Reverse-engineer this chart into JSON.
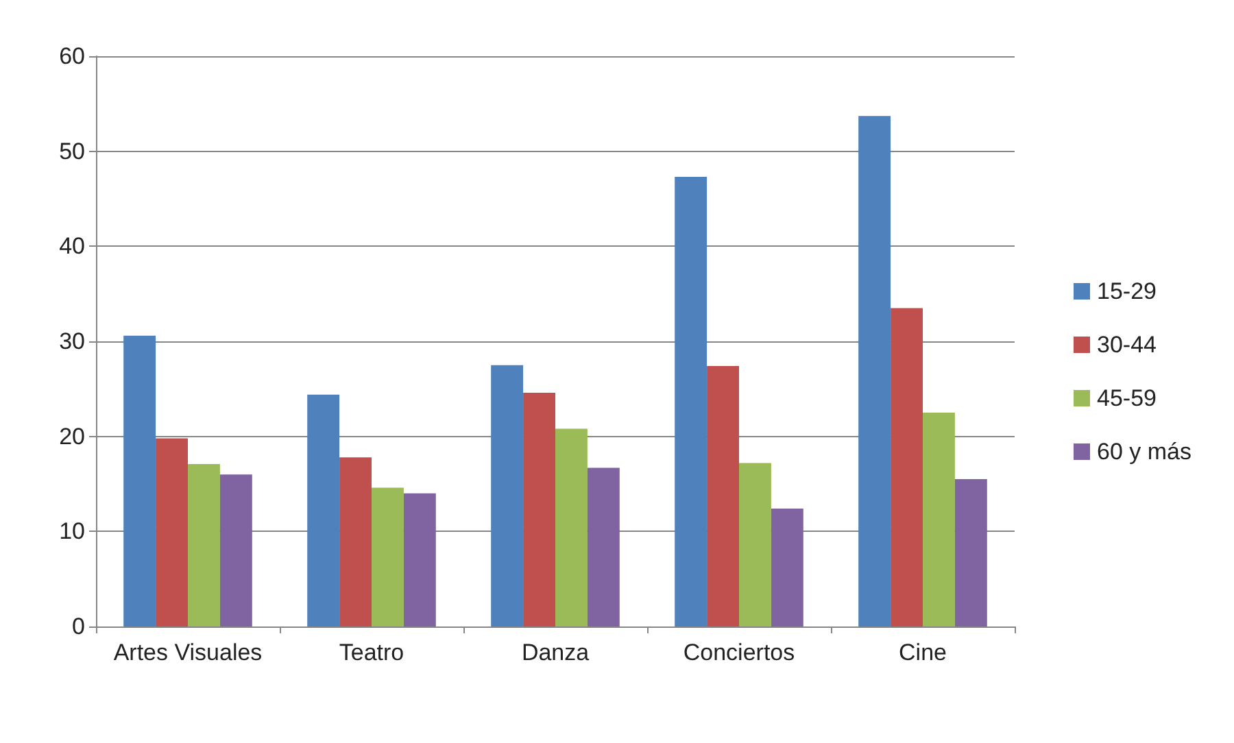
{
  "chart_data": {
    "type": "bar",
    "categories": [
      "Artes Visuales",
      "Teatro",
      "Danza",
      "Conciertos",
      "Cine"
    ],
    "series": [
      {
        "name": "15-29",
        "color": "#4f81bd",
        "values": [
          30.6,
          24.4,
          27.5,
          47.3,
          53.7
        ]
      },
      {
        "name": "30-44",
        "color": "#c0504d",
        "values": [
          19.8,
          17.8,
          24.6,
          27.4,
          33.5
        ]
      },
      {
        "name": "45-59",
        "color": "#9bbb59",
        "values": [
          17.1,
          14.6,
          20.8,
          17.2,
          22.5
        ]
      },
      {
        "name": "60 y más",
        "color": "#8064a2",
        "values": [
          16.0,
          14.0,
          16.7,
          12.4,
          15.5
        ]
      }
    ],
    "ylim": [
      0,
      60
    ],
    "yticks": [
      0,
      10,
      20,
      30,
      40,
      50,
      60
    ],
    "grid": "y",
    "legend": "right"
  }
}
